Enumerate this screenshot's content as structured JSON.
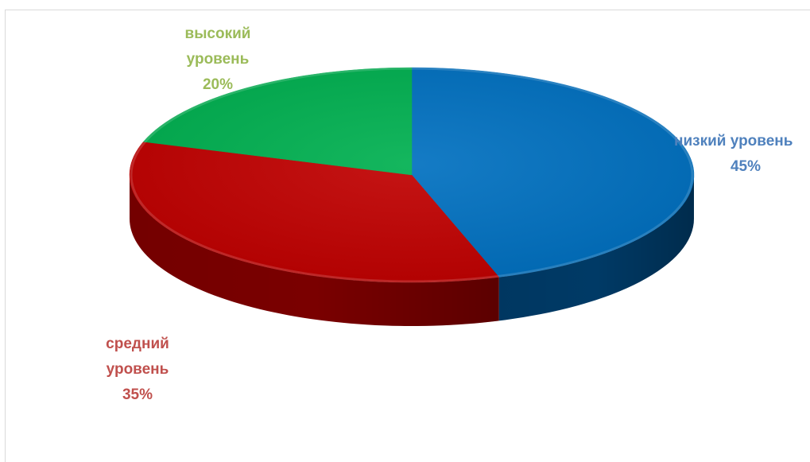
{
  "chart_data": {
    "type": "pie",
    "style": "3d",
    "slices": [
      {
        "label": "низкий уровень",
        "value": 45,
        "value_label": "45%",
        "color": "#0070c0",
        "side_color": "#003a66"
      },
      {
        "label": "средний уровень",
        "value": 35,
        "value_label": "35%",
        "color": "#c00000",
        "side_color": "#7a0000"
      },
      {
        "label": "высокий уровень",
        "value": 20,
        "value_label": "20%",
        "color": "#00b050",
        "side_color": "#006d31"
      }
    ],
    "label_colors": [
      "#4f81bd",
      "#c0504d",
      "#9bbb59"
    ],
    "labels": {
      "low": {
        "line1": "низкий уровень",
        "line2": "45%"
      },
      "mid": {
        "line1": "средний",
        "line2": "уровень",
        "line3": "35%"
      },
      "high": {
        "line1": "высокий",
        "line2": "уровень",
        "line3": "20%"
      }
    }
  }
}
